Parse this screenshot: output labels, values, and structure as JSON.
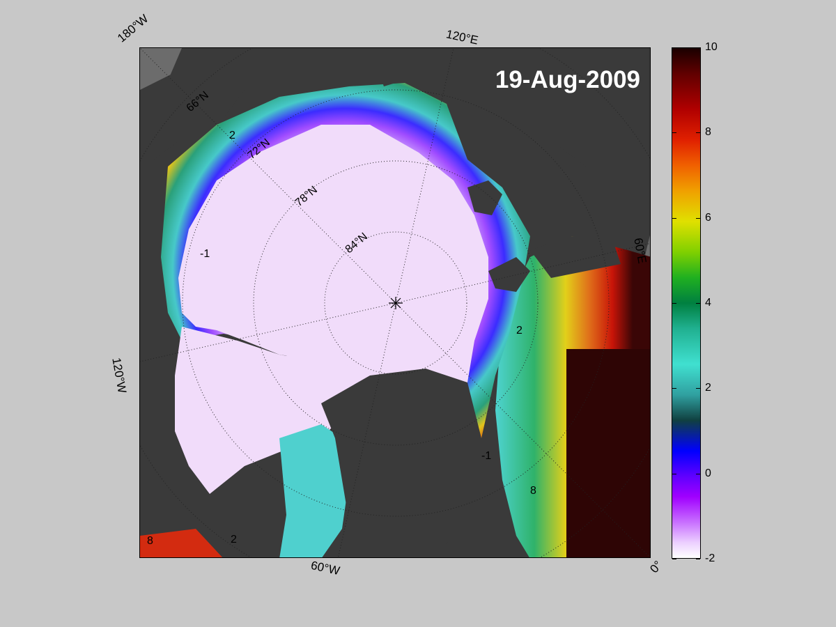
{
  "map": {
    "title": "19-Aug-2009",
    "edge_labels": {
      "top_left": "180°W",
      "top": "120°E",
      "right": "60°E",
      "bottom_right": "0°",
      "bottom": "60°W",
      "left": "120°W"
    },
    "lat_labels": [
      "66°N",
      "72°N",
      "78°N",
      "84°N"
    ],
    "contour_labels": [
      "-1",
      "2",
      "8"
    ],
    "colors": {
      "land": "#3a3a3a",
      "background": "#c8c8c8",
      "ice": "#f1dcfa"
    }
  },
  "colorbar": {
    "ticks": [
      "10",
      "8",
      "6",
      "4",
      "2",
      "0",
      "-2"
    ],
    "min": -2,
    "max": 10
  }
}
